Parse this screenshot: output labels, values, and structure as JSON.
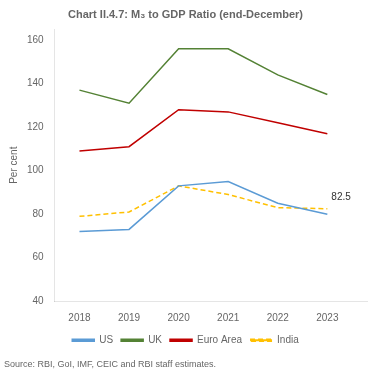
{
  "chart_data": {
    "type": "line",
    "title": "Chart II.4.7: M₃ to GDP Ratio (end-December)",
    "y_label": "Per cent",
    "source": "Source: RBI, GoI, IMF, CEIC and RBI staff estimates.",
    "x": [
      2018,
      2019,
      2020,
      2021,
      2022,
      2023
    ],
    "series": [
      {
        "name": "US",
        "color": "#5B9BD5",
        "line_style": "solid",
        "values": [
          72,
          73,
          93,
          95,
          85,
          80
        ]
      },
      {
        "name": "UK",
        "color": "#548235",
        "line_style": "solid",
        "values": [
          137,
          131,
          156,
          156,
          144,
          135
        ]
      },
      {
        "name": "Euro Area",
        "color": "#C00000",
        "line_style": "solid",
        "values": [
          109,
          111,
          128,
          127,
          122,
          117
        ]
      },
      {
        "name": "India",
        "color": "#FFC000",
        "line_style": "dashed",
        "values": [
          79,
          81,
          93,
          89,
          83,
          82.5
        ]
      }
    ],
    "xlim": [
      2017.5,
      2023.8
    ],
    "xticks": [
      2018,
      2019,
      2020,
      2021,
      2022,
      2023
    ],
    "ylim": [
      40,
      165
    ],
    "yticks": [
      40,
      60,
      80,
      100,
      120,
      140,
      160
    ],
    "annotations": [
      {
        "text": "82.5",
        "x": 2023,
        "y": 82.5
      }
    ],
    "grid": false,
    "legend": "bottom"
  }
}
